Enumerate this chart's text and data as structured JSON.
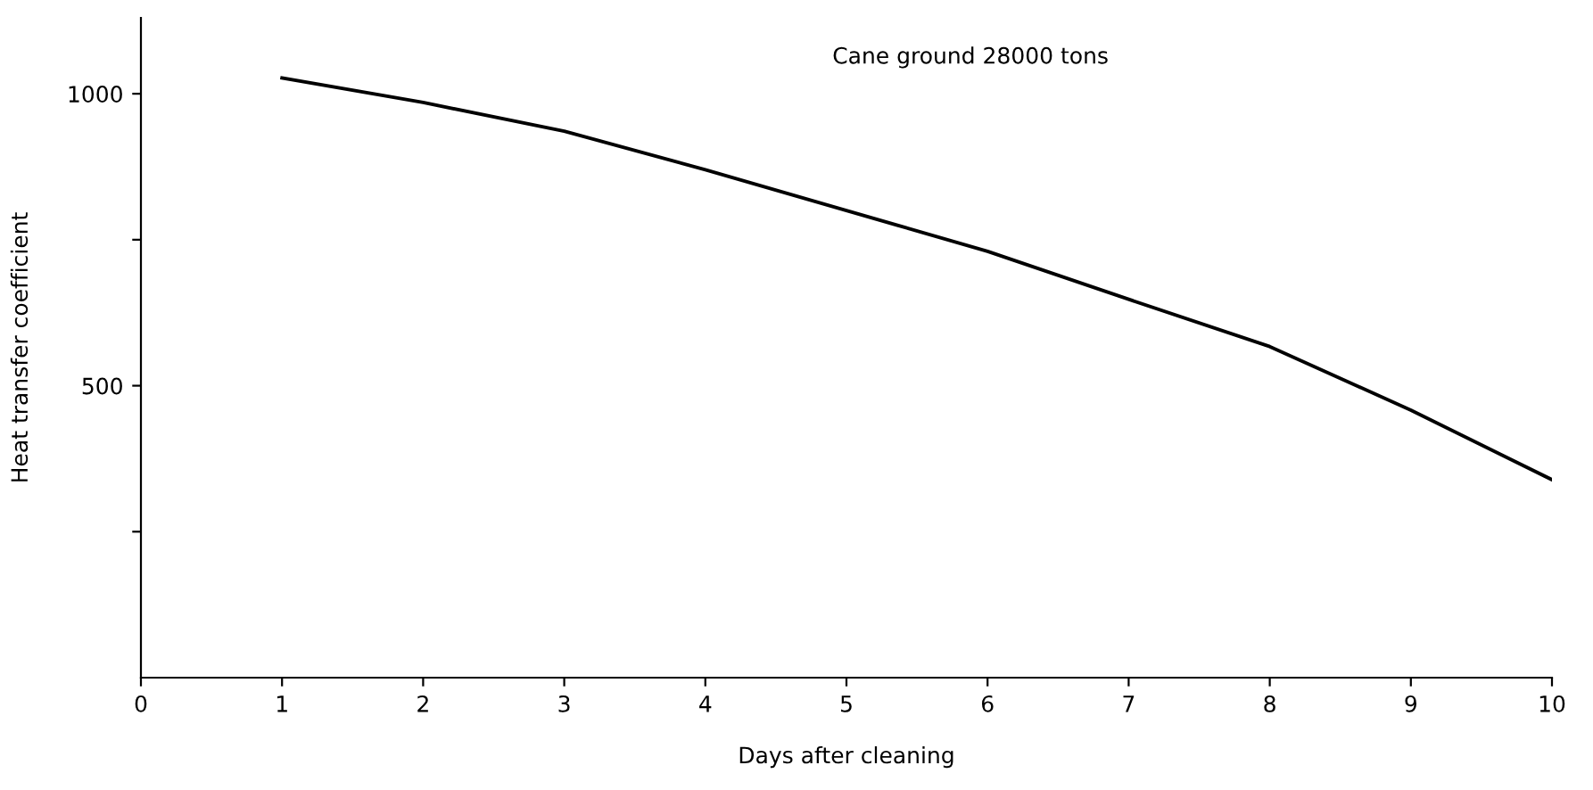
{
  "chart_data": {
    "type": "line",
    "xlabel": "Days after cleaning",
    "ylabel": "Heat transfer coefficient",
    "x": [
      1,
      2,
      3,
      4,
      5,
      6,
      7,
      8,
      9,
      10
    ],
    "series": [
      {
        "color": "#000000",
        "values": [
          1027,
          985,
          936,
          870,
          800,
          730,
          648,
          567,
          458,
          339
        ]
      }
    ],
    "annotations": [
      "Cane ground 28000 tons"
    ],
    "xlim": [
      0,
      10
    ],
    "xticks": [
      0,
      1,
      2,
      3,
      4,
      5,
      6,
      7,
      8,
      9,
      10
    ],
    "ylim": [
      0,
      1130
    ],
    "yticks": [
      {
        "value": 250,
        "label": null
      },
      500,
      {
        "value": 750,
        "label": null
      },
      1000
    ],
    "grid": false,
    "legend": false,
    "marker": "none",
    "line_style": "solid"
  }
}
